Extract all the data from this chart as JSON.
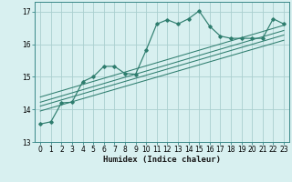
{
  "xlabel": "Humidex (Indice chaleur)",
  "bg_color": "#d8f0f0",
  "grid_color": "#aacfcf",
  "line_color": "#2e7d6e",
  "xlim": [
    -0.5,
    23.5
  ],
  "ylim": [
    13.0,
    17.3
  ],
  "yticks": [
    13,
    14,
    15,
    16,
    17
  ],
  "xticks": [
    0,
    1,
    2,
    3,
    4,
    5,
    6,
    7,
    8,
    9,
    10,
    11,
    12,
    13,
    14,
    15,
    16,
    17,
    18,
    19,
    20,
    21,
    22,
    23
  ],
  "main_x": [
    0,
    1,
    2,
    3,
    4,
    5,
    6,
    7,
    8,
    9,
    10,
    11,
    12,
    13,
    14,
    15,
    16,
    17,
    18,
    19,
    20,
    21,
    22,
    23
  ],
  "main_y": [
    13.55,
    13.62,
    14.2,
    14.22,
    14.85,
    15.0,
    15.32,
    15.32,
    15.1,
    15.08,
    15.82,
    16.62,
    16.75,
    16.62,
    16.78,
    17.02,
    16.55,
    16.25,
    16.18,
    16.18,
    16.18,
    16.18,
    16.78,
    16.62
  ],
  "trend_lines": [
    {
      "x0": 0,
      "y0": 14.38,
      "x1": 23,
      "y1": 16.58
    },
    {
      "x0": 0,
      "y0": 14.22,
      "x1": 23,
      "y1": 16.42
    },
    {
      "x0": 0,
      "y0": 14.1,
      "x1": 23,
      "y1": 16.28
    },
    {
      "x0": 0,
      "y0": 13.95,
      "x1": 23,
      "y1": 16.12
    }
  ],
  "tick_fontsize": 5.5,
  "xlabel_fontsize": 6.5
}
